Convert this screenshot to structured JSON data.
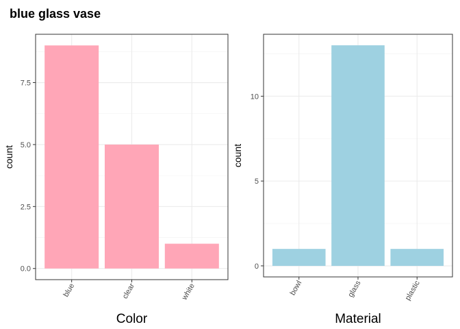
{
  "title": "blue glass vase",
  "colors": {
    "panel_border": "#333333",
    "grid": "#ebebeb",
    "grid_minor": "#f2f2f2"
  },
  "chart_data": [
    {
      "type": "bar",
      "categories": [
        "blue",
        "clear",
        "white"
      ],
      "values": [
        9,
        5,
        1
      ],
      "xlabel": "Color",
      "ylabel": "count",
      "ylim": [
        -0.45,
        9.45
      ],
      "yticks": [
        0,
        2.5,
        5,
        7.5
      ],
      "ytick_labels": [
        "0.0",
        "2.5",
        "5.0",
        "7.5"
      ],
      "color": "#ffa6b7",
      "grid": true,
      "x_tick_rotation_deg": -60
    },
    {
      "type": "bar",
      "categories": [
        "bowl",
        "glass",
        "plastic"
      ],
      "values": [
        1,
        13,
        1
      ],
      "xlabel": "Material",
      "ylabel": "count",
      "ylim": [
        -0.65,
        13.65
      ],
      "yticks": [
        0,
        5,
        10
      ],
      "ytick_labels": [
        "0",
        "5",
        "10"
      ],
      "color": "#9ed1e1",
      "grid": true,
      "x_tick_rotation_deg": -60
    }
  ]
}
